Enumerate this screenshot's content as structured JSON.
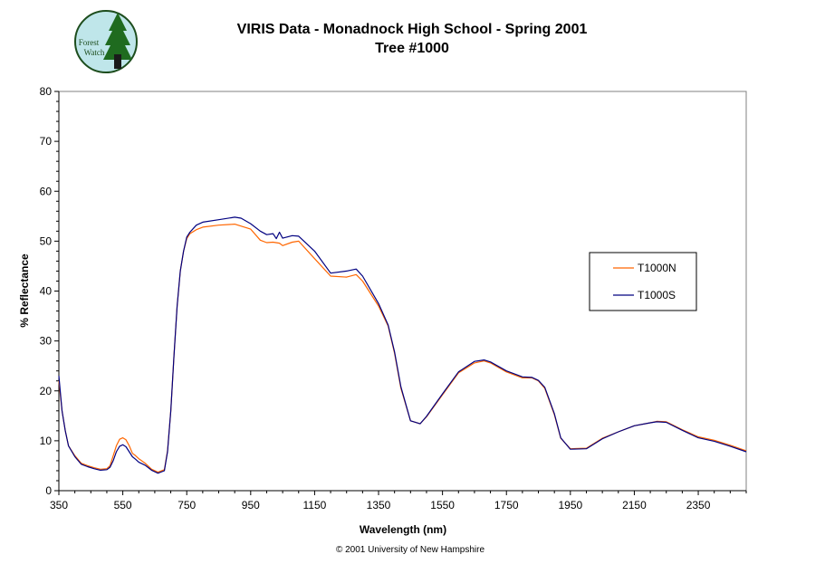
{
  "logo": {
    "line1": "Forest",
    "line2": "Watch"
  },
  "footer": {
    "copyright": "© 2001 University of New Hampshire"
  },
  "chart_data": {
    "type": "line",
    "title": "VIRIS Data - Monadnock High School - Spring 2001",
    "subtitle": "Tree #1000",
    "xlabel": "Wavelength (nm)",
    "ylabel": "% Reflectance",
    "xlim": [
      350,
      2500
    ],
    "ylim": [
      0,
      80
    ],
    "xticks": [
      350,
      550,
      750,
      950,
      1150,
      1350,
      1550,
      1750,
      1950,
      2150,
      2350
    ],
    "yticks": [
      0,
      10,
      20,
      30,
      40,
      50,
      60,
      70,
      80
    ],
    "grid": false,
    "legend_position": "right",
    "series": [
      {
        "name": "T1000N",
        "color": "#ff6600",
        "x": [
          350,
          360,
          370,
          380,
          400,
          420,
          440,
          460,
          480,
          500,
          510,
          520,
          530,
          540,
          550,
          560,
          570,
          580,
          590,
          600,
          620,
          640,
          660,
          680,
          690,
          700,
          710,
          720,
          730,
          740,
          750,
          760,
          780,
          800,
          850,
          900,
          950,
          980,
          1000,
          1020,
          1040,
          1050,
          1080,
          1100,
          1150,
          1200,
          1250,
          1280,
          1300,
          1350,
          1380,
          1400,
          1420,
          1450,
          1480,
          1500,
          1550,
          1600,
          1650,
          1680,
          1700,
          1750,
          1800,
          1830,
          1850,
          1870,
          1900,
          1920,
          1950,
          2000,
          2050,
          2100,
          2150,
          2200,
          2220,
          2250,
          2300,
          2350,
          2400,
          2450,
          2500
        ],
        "y": [
          22,
          16,
          12,
          9,
          7,
          5.5,
          5,
          4.6,
          4.3,
          4.4,
          5,
          7,
          9,
          10.3,
          10.6,
          10.2,
          9,
          7.5,
          7,
          6.4,
          5.5,
          4.3,
          3.7,
          4.2,
          8,
          16,
          27,
          37,
          44,
          48,
          50.5,
          51.5,
          52.3,
          52.8,
          53.2,
          53.4,
          52.4,
          50.2,
          49.7,
          49.8,
          49.6,
          49.1,
          49.8,
          50,
          46.5,
          43,
          42.8,
          43.3,
          42,
          37,
          33,
          27.5,
          20.5,
          14,
          13.4,
          14.8,
          19.2,
          23.6,
          25.6,
          26,
          25.6,
          23.8,
          22.6,
          22.6,
          22,
          20.5,
          15.2,
          10.5,
          8.4,
          8.5,
          10.5,
          11.8,
          13,
          13.6,
          13.9,
          13.8,
          12.2,
          10.8,
          10.1,
          9.1,
          8
        ]
      },
      {
        "name": "T1000S",
        "color": "#000080",
        "x": [
          350,
          360,
          370,
          380,
          400,
          420,
          440,
          460,
          480,
          500,
          510,
          520,
          530,
          540,
          550,
          560,
          570,
          580,
          590,
          600,
          620,
          640,
          660,
          680,
          690,
          700,
          710,
          720,
          730,
          740,
          750,
          760,
          780,
          800,
          850,
          900,
          920,
          950,
          980,
          1000,
          1020,
          1030,
          1040,
          1050,
          1080,
          1100,
          1150,
          1200,
          1250,
          1280,
          1300,
          1350,
          1380,
          1400,
          1420,
          1450,
          1480,
          1500,
          1550,
          1600,
          1650,
          1680,
          1700,
          1750,
          1800,
          1830,
          1850,
          1870,
          1900,
          1920,
          1950,
          2000,
          2050,
          2100,
          2150,
          2200,
          2220,
          2250,
          2300,
          2350,
          2400,
          2450,
          2500
        ],
        "y": [
          23,
          16,
          12,
          9,
          6.8,
          5.3,
          4.8,
          4.4,
          4.1,
          4.2,
          4.7,
          6,
          7.8,
          8.9,
          9.2,
          8.8,
          7.8,
          6.8,
          6.3,
          5.7,
          5.1,
          4.1,
          3.5,
          4,
          7.8,
          16,
          27,
          37,
          44,
          48,
          50.8,
          51.8,
          53.2,
          53.8,
          54.3,
          54.8,
          54.6,
          53.5,
          52,
          51.3,
          51.5,
          50.5,
          51.8,
          50.6,
          51.1,
          51,
          48,
          43.6,
          44,
          44.4,
          43,
          37.5,
          33.2,
          27.8,
          20.8,
          14,
          13.4,
          14.9,
          19.4,
          23.8,
          25.9,
          26.2,
          25.8,
          24,
          22.8,
          22.7,
          22.1,
          20.7,
          15.4,
          10.6,
          8.3,
          8.4,
          10.4,
          11.8,
          13,
          13.6,
          13.8,
          13.7,
          12.1,
          10.6,
          9.9,
          8.9,
          7.8
        ]
      }
    ]
  }
}
